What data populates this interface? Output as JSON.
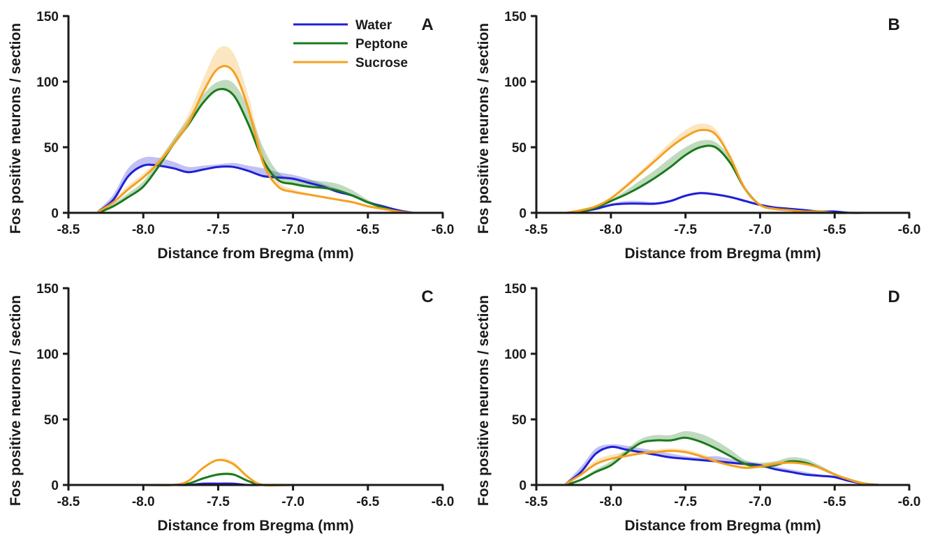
{
  "chart_data": [
    {
      "type": "line",
      "panel": "A",
      "xlabel": "Distance from Bregma (mm)",
      "ylabel": "Fos positive neurons / section",
      "xlim": [
        -8.5,
        -6.0
      ],
      "ylim": [
        0,
        150
      ],
      "xticks": [
        "-8.5",
        "-8.0",
        "-7.5",
        "-7.0",
        "-6.5",
        "-6.0"
      ],
      "yticks": [
        "0",
        "50",
        "100",
        "150"
      ],
      "legend": {
        "position": "top-right",
        "entries": [
          "Water",
          "Peptone",
          "Sucrose"
        ]
      },
      "series": [
        {
          "name": "Water",
          "color": "#1f1fd6",
          "x": [
            -8.3,
            -8.2,
            -8.1,
            -8.0,
            -7.9,
            -7.8,
            -7.7,
            -7.6,
            -7.5,
            -7.4,
            -7.3,
            -7.2,
            -7.1,
            -7.0,
            -6.9,
            -6.8,
            -6.7,
            -6.6,
            -6.5,
            -6.4,
            -6.3,
            -6.2
          ],
          "y": [
            1,
            10,
            28,
            36,
            36,
            34,
            31,
            33,
            35,
            35,
            32,
            28,
            27,
            26,
            23,
            20,
            16,
            13,
            8,
            5,
            2,
            0
          ],
          "upper": [
            2,
            14,
            34,
            42,
            42,
            39,
            35,
            36,
            37,
            38,
            36,
            34,
            31,
            29,
            26,
            22,
            18,
            14,
            9,
            5,
            2,
            0
          ]
        },
        {
          "name": "Peptone",
          "color": "#1a7a1a",
          "x": [
            -8.3,
            -8.2,
            -8.1,
            -8.0,
            -7.9,
            -7.8,
            -7.7,
            -7.6,
            -7.5,
            -7.4,
            -7.3,
            -7.2,
            -7.1,
            -7.0,
            -6.9,
            -6.8,
            -6.7,
            -6.6,
            -6.5,
            -6.4,
            -6.3,
            -6.2
          ],
          "y": [
            0,
            5,
            12,
            20,
            35,
            52,
            67,
            84,
            94,
            90,
            68,
            40,
            25,
            22,
            20,
            19,
            17,
            13,
            8,
            4,
            1,
            0
          ],
          "upper": [
            1,
            7,
            15,
            24,
            39,
            56,
            72,
            90,
            100,
            99,
            80,
            50,
            31,
            26,
            25,
            24,
            22,
            17,
            10,
            5,
            2,
            0
          ]
        },
        {
          "name": "Sucrose",
          "color": "#f5a020",
          "x": [
            -8.3,
            -8.2,
            -8.1,
            -8.0,
            -7.9,
            -7.8,
            -7.7,
            -7.6,
            -7.5,
            -7.4,
            -7.3,
            -7.2,
            -7.1,
            -7.0,
            -6.9,
            -6.8,
            -6.7,
            -6.6,
            -6.5,
            -6.4,
            -6.3,
            -6.2
          ],
          "y": [
            1,
            8,
            18,
            27,
            38,
            52,
            68,
            92,
            110,
            108,
            80,
            38,
            20,
            16,
            14,
            12,
            10,
            8,
            5,
            3,
            1,
            0
          ],
          "upper": [
            2,
            10,
            21,
            30,
            41,
            56,
            75,
            102,
            125,
            122,
            90,
            46,
            24,
            18,
            15,
            13,
            11,
            9,
            6,
            3,
            1,
            0
          ]
        }
      ]
    },
    {
      "type": "line",
      "panel": "B",
      "xlabel": "Distance from Bregma (mm)",
      "ylabel": "Fos positive neurons / section",
      "xlim": [
        -8.5,
        -6.0
      ],
      "ylim": [
        0,
        150
      ],
      "xticks": [
        "-8.5",
        "-8.0",
        "-7.5",
        "-7.0",
        "-6.5",
        "-6.0"
      ],
      "yticks": [
        "0",
        "50",
        "100",
        "150"
      ],
      "series": [
        {
          "name": "Water",
          "color": "#1f1fd6",
          "x": [
            -8.3,
            -8.2,
            -8.1,
            -8.0,
            -7.9,
            -7.8,
            -7.7,
            -7.6,
            -7.5,
            -7.4,
            -7.3,
            -7.2,
            -7.1,
            -7.0,
            -6.9,
            -6.8,
            -6.7,
            -6.6,
            -6.5,
            -6.4,
            -6.3,
            -6.2
          ],
          "y": [
            0,
            1,
            3,
            6,
            7,
            7,
            7,
            9,
            13,
            15,
            14,
            12,
            9,
            6,
            4,
            3,
            2,
            1,
            1,
            0,
            0,
            0
          ],
          "upper": [
            0,
            1,
            3,
            7,
            9,
            9,
            8,
            10,
            14,
            16,
            15,
            13,
            10,
            7,
            5,
            4,
            3,
            2,
            1,
            1,
            0,
            0
          ]
        },
        {
          "name": "Peptone",
          "color": "#1a7a1a",
          "x": [
            -8.3,
            -8.2,
            -8.1,
            -8.0,
            -7.9,
            -7.8,
            -7.7,
            -7.6,
            -7.5,
            -7.4,
            -7.3,
            -7.2,
            -7.1,
            -7.0,
            -6.9,
            -6.8,
            -6.7,
            -6.6,
            -6.5,
            -6.4,
            -6.3,
            -6.2
          ],
          "y": [
            0,
            1,
            4,
            9,
            14,
            20,
            27,
            35,
            44,
            50,
            50,
            38,
            18,
            6,
            3,
            2,
            1,
            1,
            0,
            0,
            0,
            0
          ],
          "upper": [
            0,
            1,
            5,
            10,
            17,
            25,
            33,
            42,
            50,
            55,
            54,
            42,
            20,
            7,
            4,
            3,
            2,
            1,
            1,
            0,
            0,
            0
          ]
        },
        {
          "name": "Sucrose",
          "color": "#f5a020",
          "x": [
            -8.3,
            -8.2,
            -8.1,
            -8.0,
            -7.9,
            -7.8,
            -7.7,
            -7.6,
            -7.5,
            -7.4,
            -7.3,
            -7.2,
            -7.1,
            -7.0,
            -6.9,
            -6.8,
            -6.7,
            -6.6,
            -6.5,
            -6.4,
            -6.3,
            -6.2
          ],
          "y": [
            0,
            2,
            5,
            11,
            20,
            30,
            40,
            50,
            58,
            63,
            60,
            42,
            18,
            6,
            3,
            2,
            1,
            1,
            0,
            0,
            0,
            0
          ],
          "upper": [
            0,
            2,
            6,
            12,
            22,
            32,
            43,
            54,
            63,
            68,
            64,
            45,
            20,
            7,
            4,
            3,
            2,
            1,
            1,
            0,
            0,
            0
          ]
        }
      ]
    },
    {
      "type": "line",
      "panel": "C",
      "xlabel": "Distance from Bregma (mm)",
      "ylabel": "Fos positive neurons / section",
      "xlim": [
        -8.5,
        -6.0
      ],
      "ylim": [
        0,
        150
      ],
      "xticks": [
        "-8.5",
        "-8.0",
        "-7.5",
        "-7.0",
        "-6.5",
        "-6.0"
      ],
      "yticks": [
        "0",
        "50",
        "100",
        "150"
      ],
      "series": [
        {
          "name": "Water",
          "color": "#1f1fd6",
          "x": [
            -8.3,
            -8.0,
            -7.8,
            -7.7,
            -7.6,
            -7.5,
            -7.4,
            -7.3,
            -7.2,
            -7.0,
            -6.5,
            -6.2
          ],
          "y": [
            0,
            0,
            0,
            0,
            1,
            1,
            1,
            0,
            0,
            0,
            0,
            0
          ],
          "upper": [
            0,
            0,
            0,
            0,
            1,
            1,
            1,
            0,
            0,
            0,
            0,
            0
          ]
        },
        {
          "name": "Peptone",
          "color": "#1a7a1a",
          "x": [
            -8.3,
            -8.0,
            -7.8,
            -7.7,
            -7.6,
            -7.5,
            -7.4,
            -7.3,
            -7.2,
            -7.0,
            -6.5,
            -6.2
          ],
          "y": [
            0,
            0,
            0,
            1,
            5,
            8,
            8,
            3,
            0,
            0,
            0,
            0
          ],
          "upper": [
            0,
            0,
            0,
            1,
            5,
            9,
            9,
            3,
            0,
            0,
            0,
            0
          ]
        },
        {
          "name": "Sucrose",
          "color": "#f5a020",
          "x": [
            -8.3,
            -8.0,
            -7.8,
            -7.7,
            -7.6,
            -7.5,
            -7.4,
            -7.3,
            -7.2,
            -7.0,
            -6.5,
            -6.2
          ],
          "y": [
            0,
            0,
            0,
            3,
            13,
            19,
            16,
            6,
            0,
            0,
            0,
            0
          ],
          "upper": [
            0,
            0,
            0,
            3,
            14,
            20,
            18,
            7,
            0,
            0,
            0,
            0
          ]
        }
      ]
    },
    {
      "type": "line",
      "panel": "D",
      "xlabel": "Distance from Bregma (mm)",
      "ylabel": "Fos positive neurons / section",
      "xlim": [
        -8.5,
        -6.0
      ],
      "ylim": [
        0,
        150
      ],
      "xticks": [
        "-8.5",
        "-8.0",
        "-7.5",
        "-7.0",
        "-6.5",
        "-6.0"
      ],
      "yticks": [
        "0",
        "50",
        "100",
        "150"
      ],
      "series": [
        {
          "name": "Water",
          "color": "#1f1fd6",
          "x": [
            -8.3,
            -8.2,
            -8.1,
            -8.0,
            -7.9,
            -7.8,
            -7.7,
            -7.6,
            -7.5,
            -7.4,
            -7.3,
            -7.2,
            -7.1,
            -7.0,
            -6.9,
            -6.8,
            -6.7,
            -6.6,
            -6.5,
            -6.4,
            -6.3,
            -6.2
          ],
          "y": [
            1,
            10,
            24,
            29,
            27,
            25,
            23,
            21,
            20,
            19,
            18,
            17,
            16,
            15,
            12,
            10,
            8,
            7,
            6,
            3,
            1,
            0
          ],
          "upper": [
            2,
            14,
            28,
            31,
            30,
            28,
            26,
            24,
            22,
            21,
            22,
            20,
            18,
            16,
            14,
            12,
            10,
            8,
            7,
            3,
            1,
            0
          ]
        },
        {
          "name": "Peptone",
          "color": "#1a7a1a",
          "x": [
            -8.3,
            -8.2,
            -8.1,
            -8.0,
            -7.9,
            -7.8,
            -7.7,
            -7.6,
            -7.5,
            -7.4,
            -7.3,
            -7.2,
            -7.1,
            -7.0,
            -6.9,
            -6.8,
            -6.7,
            -6.6,
            -6.5,
            -6.4,
            -6.3,
            -6.2
          ],
          "y": [
            0,
            4,
            10,
            15,
            24,
            32,
            34,
            34,
            36,
            33,
            28,
            22,
            16,
            14,
            15,
            18,
            17,
            13,
            8,
            4,
            1,
            0
          ],
          "upper": [
            1,
            5,
            12,
            18,
            27,
            35,
            38,
            38,
            41,
            39,
            34,
            27,
            19,
            17,
            18,
            21,
            20,
            15,
            9,
            5,
            2,
            0
          ]
        },
        {
          "name": "Sucrose",
          "color": "#f5a020",
          "x": [
            -8.3,
            -8.2,
            -8.1,
            -8.0,
            -7.9,
            -7.8,
            -7.7,
            -7.6,
            -7.5,
            -7.4,
            -7.3,
            -7.2,
            -7.1,
            -7.0,
            -6.9,
            -6.8,
            -6.7,
            -6.6,
            -6.5,
            -6.4,
            -6.3,
            -6.2
          ],
          "y": [
            1,
            8,
            16,
            20,
            22,
            24,
            25,
            26,
            25,
            22,
            18,
            15,
            13,
            14,
            16,
            17,
            16,
            13,
            8,
            4,
            1,
            0
          ],
          "upper": [
            2,
            10,
            19,
            23,
            25,
            26,
            27,
            28,
            27,
            24,
            20,
            17,
            15,
            16,
            18,
            19,
            18,
            14,
            9,
            4,
            1,
            0
          ]
        }
      ]
    }
  ]
}
